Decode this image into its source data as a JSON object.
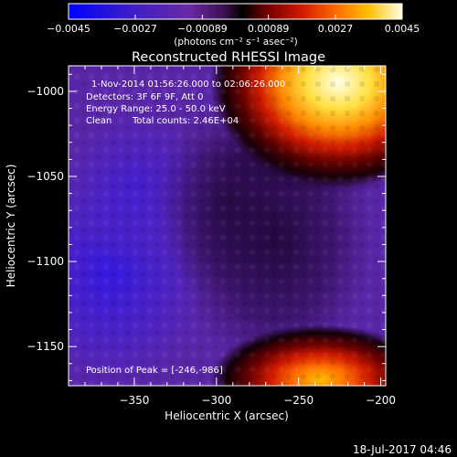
{
  "colorbar": {
    "tick_labels": [
      "−0.0045",
      "−0.0027",
      "−0.00089",
      "0.00089",
      "0.0027",
      "0.0045"
    ],
    "tick_values": [
      -0.0045,
      -0.0027,
      -0.00089,
      0.00089,
      0.0027,
      0.0045
    ],
    "range": [
      -0.0045,
      0.0045
    ],
    "unit_label": "(photons cm⁻² s⁻¹ asec⁻²)",
    "colors": [
      "#0000ff",
      "#3a1dc8",
      "#6a2aa6",
      "#3a0f4f",
      "#000000",
      "#7a0000",
      "#d11a00",
      "#ff6a00",
      "#ffc000",
      "#ffffe8"
    ]
  },
  "chart_data": {
    "type": "heatmap",
    "title": "Reconstructed RHESSI Image",
    "xlabel": "Heliocentric X (arcsec)",
    "ylabel": "Heliocentric Y (arcsec)",
    "xlim": [
      -390,
      -197
    ],
    "ylim": [
      -1173,
      -985
    ],
    "x_ticks": [
      {
        "value": -350,
        "label": "−350"
      },
      {
        "value": -300,
        "label": "−300"
      },
      {
        "value": -250,
        "label": "−250"
      },
      {
        "value": -200,
        "label": "−200"
      }
    ],
    "y_ticks": [
      {
        "value": -1000,
        "label": "−1000"
      },
      {
        "value": -1050,
        "label": "−1050"
      },
      {
        "value": -1100,
        "label": "−1100"
      },
      {
        "value": -1150,
        "label": "−1150"
      }
    ],
    "sources": [
      {
        "x": -246,
        "y": -986,
        "peak": 0.0045
      },
      {
        "x": -240,
        "y": -1172,
        "peak": 0.0034
      }
    ],
    "annotations": {
      "time_range": "1-Nov-2014 01:56:26.000 to 02:06:26.000",
      "detectors": "Detectors: 3F 6F 9F, Att 0",
      "energy": "Energy Range: 25.0 - 50.0 keV",
      "clean": "Clean",
      "total_counts": "Total counts: 2.46E+04",
      "peak": "Position of Peak = [-246,-986]"
    }
  },
  "footer_date": "18-Jul-2017 04:46"
}
